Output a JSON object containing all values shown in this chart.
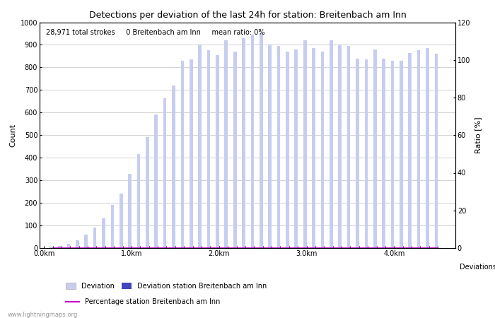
{
  "title": "Detections per deviation of the last 24h for station: Breitenbach am Inn",
  "annotation": "28,971 total strokes     0 Breitenbach am Inn     mean ratio: 0%",
  "ylabel_left": "Count",
  "ylabel_right": "Ratio [%]",
  "xlabel_right": "Deviations",
  "ylim_left": [
    0,
    1000
  ],
  "ylim_right": [
    0,
    120
  ],
  "yticks_left": [
    0,
    100,
    200,
    300,
    400,
    500,
    600,
    700,
    800,
    900,
    1000
  ],
  "yticks_right": [
    0,
    20,
    40,
    60,
    80,
    100,
    120
  ],
  "watermark": "www.lightningmaps.org",
  "bar_color_light": "#c8cdf0",
  "bar_color_dark": "#4444bb",
  "line_color": "#cc00cc",
  "xtick_positions": [
    0.0,
    1.0,
    2.0,
    3.0,
    4.0
  ],
  "xtick_labels": [
    "0.0km",
    "1.0km",
    "2.0km",
    "3.0km",
    "4.0km"
  ],
  "xlim": [
    -0.05,
    4.7
  ],
  "bar_positions": [
    0.1,
    0.15,
    0.2,
    0.25,
    0.3,
    0.35,
    0.4,
    0.45,
    0.5,
    0.55,
    0.6,
    0.65,
    0.7,
    0.75,
    0.8,
    0.85,
    0.9,
    0.95,
    1.0,
    1.05,
    1.1,
    1.15,
    1.2,
    1.25,
    1.3,
    1.35,
    1.4,
    1.45,
    1.5,
    1.55,
    1.6,
    1.65,
    1.7,
    1.75,
    1.8,
    1.85,
    1.9,
    1.95,
    2.0,
    2.05,
    2.1,
    2.15,
    2.2,
    2.25,
    2.3,
    2.35,
    2.4,
    2.45,
    2.5,
    2.55,
    2.6,
    2.65,
    2.7,
    2.75,
    2.8,
    2.85,
    2.9,
    2.95,
    3.0,
    3.05,
    3.1,
    3.15,
    3.2,
    3.25,
    3.3,
    3.35,
    3.4,
    3.45,
    3.5,
    3.55,
    3.6,
    3.65,
    3.7,
    3.75,
    3.8,
    3.85,
    3.9,
    3.95,
    4.0,
    4.05,
    4.1,
    4.15,
    4.2,
    4.25,
    4.3,
    4.35,
    4.4,
    4.45,
    4.5
  ],
  "bar_heights": [
    5,
    0,
    10,
    0,
    20,
    0,
    35,
    0,
    60,
    0,
    90,
    0,
    130,
    0,
    190,
    0,
    240,
    0,
    330,
    0,
    415,
    0,
    490,
    0,
    590,
    0,
    665,
    0,
    720,
    0,
    830,
    0,
    835,
    0,
    900,
    0,
    875,
    0,
    855,
    0,
    920,
    0,
    870,
    0,
    930,
    0,
    945,
    0,
    950,
    0,
    900,
    0,
    895,
    0,
    870,
    0,
    880,
    0,
    920,
    0,
    885,
    0,
    870,
    0,
    920,
    0,
    900,
    0,
    895,
    0,
    840,
    0,
    835,
    0,
    880,
    0,
    840,
    0,
    830,
    0,
    830,
    0,
    865,
    0,
    875,
    0,
    885,
    0,
    860
  ],
  "station_heights": [
    0,
    0,
    0,
    0,
    0,
    0,
    0,
    0,
    0,
    0,
    0,
    0,
    0,
    0,
    0,
    0,
    0,
    0,
    0,
    0,
    0,
    0,
    0,
    0,
    0,
    0,
    0,
    0,
    0,
    0,
    0,
    0,
    0,
    0,
    0,
    0,
    0,
    0,
    0,
    0,
    0,
    0,
    0,
    0,
    0,
    0,
    0,
    0,
    0,
    0,
    0,
    0,
    0,
    0,
    0,
    0,
    0,
    0,
    0,
    0,
    0,
    0,
    0,
    0,
    0,
    0,
    0,
    0,
    0,
    0,
    0,
    0,
    0,
    0,
    0,
    0,
    0,
    0,
    0,
    0,
    0,
    0,
    0,
    0,
    0,
    0,
    0,
    0,
    0
  ]
}
